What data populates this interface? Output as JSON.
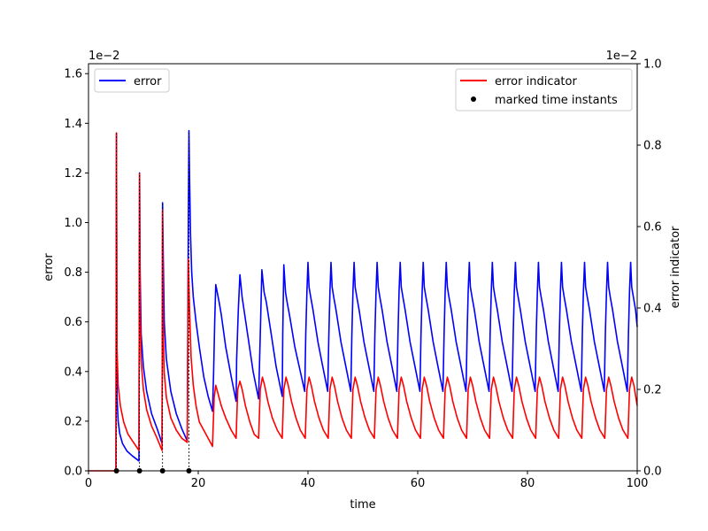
{
  "chart_data": {
    "type": "line",
    "xlabel": "time",
    "ylabel_left": "error",
    "ylabel_right": "error indicator",
    "xlim": [
      0,
      100
    ],
    "ylim_left": [
      0,
      1.64
    ],
    "ylim_right": [
      0,
      1.0
    ],
    "scale_note_left": "1e−2",
    "scale_note_right": "1e−2",
    "x_ticks": [
      "0",
      "20",
      "40",
      "60",
      "80",
      "100"
    ],
    "y_ticks_left": [
      "0.0",
      "0.2",
      "0.4",
      "0.6",
      "0.8",
      "1.0",
      "1.2",
      "1.4",
      "1.6"
    ],
    "y_ticks_right": [
      "0.0",
      "0.2",
      "0.4",
      "0.6",
      "0.8",
      "1.0"
    ],
    "grid": false,
    "legend_left": {
      "placement": "upper-left",
      "entries": [
        {
          "label": "error",
          "color": "#0000ff"
        }
      ]
    },
    "legend_right": {
      "placement": "upper-right",
      "entries": [
        {
          "label": "error indicator",
          "color": "#ff0000",
          "kind": "line"
        },
        {
          "label": "marked time instants",
          "color": "#000000",
          "kind": "dot"
        }
      ]
    },
    "marked_time_instants": [
      5.1,
      9.3,
      13.5,
      18.3
    ],
    "series": [
      {
        "name": "error",
        "axis": "left",
        "color": "#0000ff",
        "x": [
          5.0,
          5.1,
          5.2,
          5.4,
          5.7,
          6.2,
          7.0,
          8.0,
          9.2,
          9.3,
          9.4,
          9.6,
          10.0,
          10.6,
          11.5,
          12.5,
          13.4,
          13.5,
          13.6,
          13.8,
          14.2,
          15.0,
          16.0,
          17.0,
          18.0,
          18.2,
          18.3,
          18.4,
          18.6,
          18.8,
          19.1,
          19.6,
          20.2,
          21.0,
          21.8,
          22.6,
          22.8,
          23.0,
          23.2,
          23.8,
          24.2,
          25.0,
          26.0,
          26.9,
          27.0,
          27.3,
          27.6,
          28.0,
          29.0,
          30.0,
          31.0,
          31.3,
          31.6,
          32.0,
          32.4,
          33.3,
          34.2,
          35.3,
          35.4,
          35.6,
          35.9,
          36.2,
          36.7,
          37.6,
          38.5,
          39.4,
          39.6,
          39.8,
          40.0,
          40.2,
          40.5,
          40.9,
          41.8,
          42.7,
          43.6,
          43.8,
          44.0,
          44.2,
          44.4,
          44.7,
          45.1,
          46.0,
          46.9,
          47.8,
          48.0,
          48.2,
          48.4,
          48.6,
          48.9,
          49.3,
          50.2,
          51.1,
          52.0,
          52.2,
          52.4,
          52.6,
          52.8,
          53.1,
          53.5,
          54.4,
          55.3,
          56.2,
          56.4,
          56.6,
          56.8,
          57.0,
          57.3,
          57.7,
          58.6,
          59.5,
          60.4,
          60.6,
          60.8,
          61.0,
          61.2,
          61.5,
          61.9,
          62.8,
          63.7,
          64.6,
          64.8,
          65.0,
          65.2,
          65.4,
          65.7,
          66.1,
          67.0,
          67.9,
          68.8,
          69.0,
          69.2,
          69.4,
          69.6,
          69.9,
          70.3,
          71.2,
          72.1,
          73.0,
          73.2,
          73.4,
          73.6,
          73.8,
          74.1,
          74.5,
          75.4,
          76.3,
          77.2,
          77.4,
          77.6,
          77.8,
          78.0,
          78.3,
          78.7,
          79.6,
          80.5,
          81.4,
          81.6,
          81.8,
          82.0,
          82.2,
          82.5,
          82.9,
          83.8,
          84.7,
          85.6,
          85.8,
          86.0,
          86.2,
          86.4,
          86.7,
          87.1,
          88.0,
          88.9,
          89.8,
          90.0,
          90.2,
          90.4,
          90.6,
          90.9,
          91.3,
          92.2,
          93.1,
          94.0,
          94.2,
          94.4,
          94.6,
          94.8,
          95.1,
          95.5,
          96.4,
          97.3,
          98.2,
          98.4,
          98.6,
          98.8,
          99.0,
          99.3,
          99.7,
          100.0
        ],
        "y": [
          0.0,
          1.36,
          0.3,
          0.2,
          0.15,
          0.11,
          0.08,
          0.06,
          0.04,
          1.2,
          0.8,
          0.55,
          0.42,
          0.32,
          0.23,
          0.17,
          0.11,
          1.08,
          0.9,
          0.6,
          0.45,
          0.32,
          0.23,
          0.17,
          0.12,
          1.02,
          1.37,
          1.2,
          0.95,
          0.8,
          0.7,
          0.6,
          0.5,
          0.38,
          0.3,
          0.24,
          0.4,
          0.6,
          0.75,
          0.68,
          0.63,
          0.5,
          0.38,
          0.28,
          0.45,
          0.65,
          0.79,
          0.7,
          0.55,
          0.4,
          0.29,
          0.55,
          0.81,
          0.72,
          0.68,
          0.55,
          0.42,
          0.3,
          0.55,
          0.83,
          0.72,
          0.68,
          0.62,
          0.5,
          0.41,
          0.32,
          0.55,
          0.72,
          0.84,
          0.74,
          0.7,
          0.65,
          0.52,
          0.42,
          0.32,
          0.55,
          0.72,
          0.84,
          0.74,
          0.7,
          0.65,
          0.52,
          0.42,
          0.32,
          0.55,
          0.72,
          0.84,
          0.74,
          0.7,
          0.65,
          0.52,
          0.42,
          0.32,
          0.55,
          0.72,
          0.84,
          0.74,
          0.7,
          0.65,
          0.52,
          0.42,
          0.32,
          0.55,
          0.72,
          0.84,
          0.74,
          0.7,
          0.65,
          0.52,
          0.42,
          0.32,
          0.55,
          0.72,
          0.84,
          0.74,
          0.7,
          0.65,
          0.52,
          0.42,
          0.32,
          0.55,
          0.72,
          0.84,
          0.74,
          0.7,
          0.65,
          0.52,
          0.42,
          0.32,
          0.55,
          0.72,
          0.84,
          0.74,
          0.7,
          0.65,
          0.52,
          0.42,
          0.32,
          0.55,
          0.72,
          0.84,
          0.74,
          0.7,
          0.65,
          0.52,
          0.42,
          0.32,
          0.55,
          0.72,
          0.84,
          0.74,
          0.7,
          0.65,
          0.52,
          0.42,
          0.32,
          0.55,
          0.72,
          0.84,
          0.74,
          0.7,
          0.65,
          0.52,
          0.42,
          0.32,
          0.55,
          0.72,
          0.84,
          0.74,
          0.7,
          0.65,
          0.52,
          0.42,
          0.32,
          0.55,
          0.72,
          0.84,
          0.74,
          0.7,
          0.65,
          0.52,
          0.42,
          0.32,
          0.55,
          0.72,
          0.84,
          0.74,
          0.7,
          0.65,
          0.52,
          0.42,
          0.32,
          0.55,
          0.72,
          0.84,
          0.74,
          0.7,
          0.65,
          0.58
        ]
      },
      {
        "name": "error indicator",
        "axis": "right",
        "color": "#ff0000",
        "x": [
          0.0,
          5.0,
          5.1,
          5.2,
          5.4,
          5.8,
          6.4,
          7.2,
          8.2,
          9.2,
          9.3,
          9.4,
          9.6,
          10.0,
          10.6,
          11.5,
          12.5,
          13.4,
          13.5,
          13.6,
          13.8,
          14.2,
          15.0,
          16.0,
          17.0,
          18.0,
          18.2,
          18.4,
          18.7,
          19.1,
          19.6,
          20.2,
          21.0,
          21.8,
          22.6,
          22.9,
          23.2,
          23.6,
          24.2,
          25.0,
          26.0,
          26.9,
          27.2,
          27.6,
          28.0,
          28.6,
          29.4,
          30.2,
          31.0,
          31.3,
          31.7,
          32.1,
          32.7,
          33.5,
          34.4,
          35.3,
          35.6,
          36.0,
          36.4,
          37.0,
          37.8,
          38.6,
          39.5,
          39.8,
          40.2,
          40.6,
          41.2,
          42.0,
          42.8,
          43.7,
          44.0,
          44.4,
          44.8,
          45.4,
          46.2,
          47.0,
          47.9,
          48.2,
          48.6,
          49.0,
          49.6,
          50.4,
          51.2,
          52.1,
          52.4,
          52.8,
          53.2,
          53.8,
          54.6,
          55.4,
          56.3,
          56.6,
          57.0,
          57.4,
          58.0,
          58.8,
          59.6,
          60.5,
          60.8,
          61.2,
          61.6,
          62.2,
          63.0,
          63.8,
          64.7,
          65.0,
          65.4,
          65.8,
          66.4,
          67.2,
          68.0,
          68.9,
          69.2,
          69.6,
          70.0,
          70.6,
          71.4,
          72.2,
          73.1,
          73.4,
          73.8,
          74.2,
          74.8,
          75.6,
          76.4,
          77.3,
          77.6,
          78.0,
          78.4,
          79.0,
          79.8,
          80.6,
          81.5,
          81.8,
          82.2,
          82.6,
          83.2,
          84.0,
          84.8,
          85.7,
          86.0,
          86.4,
          86.8,
          87.4,
          88.2,
          89.0,
          89.9,
          90.2,
          90.6,
          91.0,
          91.6,
          92.4,
          93.2,
          94.1,
          94.4,
          94.8,
          95.2,
          95.8,
          96.6,
          97.4,
          98.3,
          98.6,
          99.0,
          99.4,
          100.0
        ],
        "y": [
          0.0,
          0.0,
          0.83,
          0.3,
          0.21,
          0.16,
          0.12,
          0.09,
          0.07,
          0.05,
          0.73,
          0.4,
          0.27,
          0.2,
          0.15,
          0.11,
          0.08,
          0.05,
          0.64,
          0.36,
          0.24,
          0.18,
          0.13,
          0.1,
          0.08,
          0.07,
          0.52,
          0.4,
          0.28,
          0.21,
          0.16,
          0.12,
          0.1,
          0.08,
          0.06,
          0.18,
          0.21,
          0.19,
          0.16,
          0.13,
          0.1,
          0.08,
          0.2,
          0.22,
          0.2,
          0.16,
          0.12,
          0.09,
          0.08,
          0.2,
          0.23,
          0.21,
          0.17,
          0.13,
          0.1,
          0.08,
          0.2,
          0.23,
          0.21,
          0.17,
          0.13,
          0.1,
          0.08,
          0.2,
          0.23,
          0.21,
          0.17,
          0.13,
          0.1,
          0.08,
          0.2,
          0.23,
          0.21,
          0.17,
          0.13,
          0.1,
          0.08,
          0.2,
          0.23,
          0.21,
          0.17,
          0.13,
          0.1,
          0.08,
          0.2,
          0.23,
          0.21,
          0.17,
          0.13,
          0.1,
          0.08,
          0.2,
          0.23,
          0.21,
          0.17,
          0.13,
          0.1,
          0.08,
          0.2,
          0.23,
          0.21,
          0.17,
          0.13,
          0.1,
          0.08,
          0.2,
          0.23,
          0.21,
          0.17,
          0.13,
          0.1,
          0.08,
          0.2,
          0.23,
          0.21,
          0.17,
          0.13,
          0.1,
          0.08,
          0.2,
          0.23,
          0.21,
          0.17,
          0.13,
          0.1,
          0.08,
          0.2,
          0.23,
          0.21,
          0.17,
          0.13,
          0.1,
          0.08,
          0.2,
          0.23,
          0.21,
          0.17,
          0.13,
          0.1,
          0.08,
          0.2,
          0.23,
          0.21,
          0.17,
          0.13,
          0.1,
          0.08,
          0.2,
          0.23,
          0.21,
          0.17,
          0.13,
          0.1,
          0.08,
          0.2,
          0.23,
          0.21,
          0.17,
          0.13,
          0.1,
          0.08,
          0.2,
          0.23,
          0.21,
          0.16
        ]
      }
    ]
  }
}
